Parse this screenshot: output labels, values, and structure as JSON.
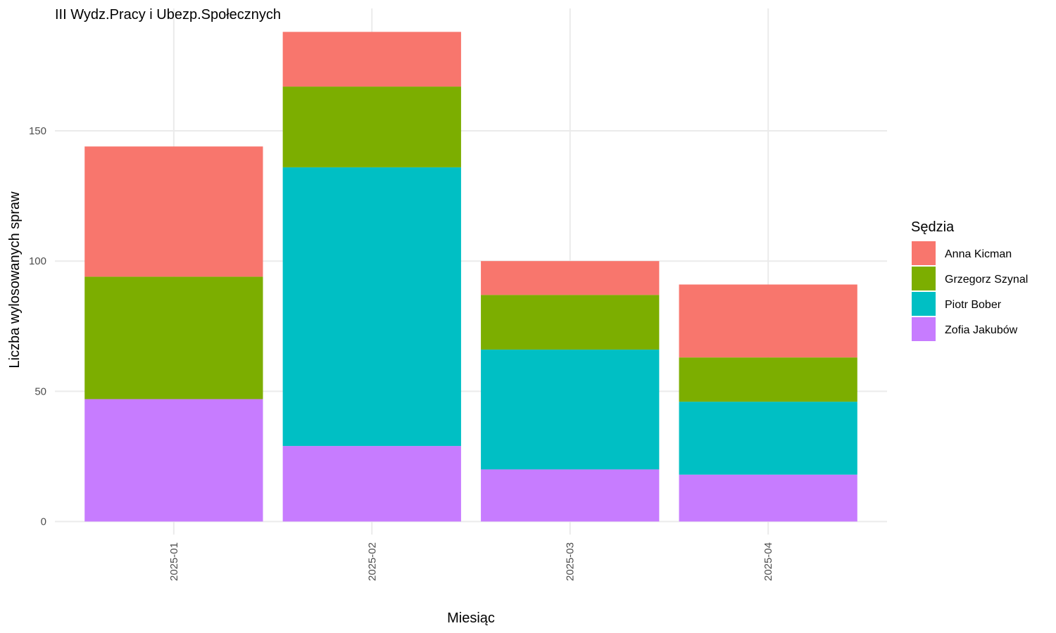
{
  "chart_data": {
    "type": "bar",
    "stacked": true,
    "title": "III Wydz.Pracy i Ubezp.Społecznych",
    "xlabel": "Miesiąc",
    "ylabel": "Liczba wylosowanych spraw",
    "categories": [
      "2025-01",
      "2025-02",
      "2025-03",
      "2025-04"
    ],
    "ylim": [
      -5,
      197
    ],
    "yticks": [
      0,
      50,
      100,
      150
    ],
    "grid": true,
    "legend": {
      "title": "Sędzia",
      "position": "right"
    },
    "series": [
      {
        "name": "Zofia Jakubów",
        "color": "#C77CFF",
        "values": [
          47,
          29,
          20,
          18
        ]
      },
      {
        "name": "Piotr Bober",
        "color": "#00BFC4",
        "values": [
          0,
          107,
          46,
          28
        ]
      },
      {
        "name": "Grzegorz Szynal",
        "color": "#7CAE00",
        "values": [
          47,
          31,
          21,
          17
        ]
      },
      {
        "name": "Anna Kicman",
        "color": "#F8766D",
        "values": [
          50,
          21,
          13,
          28
        ]
      }
    ],
    "legend_order": [
      "Anna Kicman",
      "Grzegorz Szynal",
      "Piotr Bober",
      "Zofia Jakubów"
    ]
  }
}
